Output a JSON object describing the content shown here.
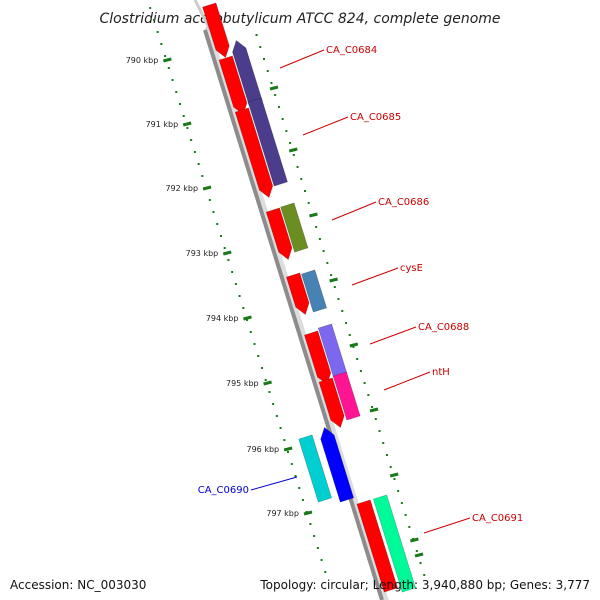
{
  "title": "Clostridium acetobutylicum ATCC 824, complete genome",
  "footer": {
    "accession": "Accession: NC_003030",
    "summary": "Topology: circular; Length: 3,940,880 bp; Genes: 3,777"
  },
  "ticks": [
    "790 kbp",
    "791 kbp",
    "792 kbp",
    "793 kbp",
    "794 kbp",
    "795 kbp",
    "796 kbp",
    "797 kbp"
  ],
  "genes": [
    {
      "label": "CA_C0684",
      "color": "#4B3C8C",
      "strand": "forward",
      "label_color": "#cc0000"
    },
    {
      "label": "CA_C0685",
      "color": "#4B3C8C",
      "strand": "forward",
      "label_color": "#cc0000"
    },
    {
      "label": "CA_C0686",
      "color": "#6B8E23",
      "strand": "forward",
      "label_color": "#cc0000"
    },
    {
      "label": "cysE",
      "color": "#4682B4",
      "strand": "forward",
      "label_color": "#cc0000"
    },
    {
      "label": "CA_C0688",
      "color": "#7B68EE",
      "strand": "forward",
      "label_color": "#cc0000"
    },
    {
      "label": "ntH",
      "color": "#FF1493",
      "strand": "forward",
      "label_color": "#cc0000"
    },
    {
      "label": "CA_C0690",
      "color": "#00CED1",
      "strand": "reverse",
      "label_color": "#0000cc"
    },
    {
      "label": "CA_C0691",
      "color": "#00FA9A",
      "strand": "forward",
      "label_color": "#cc0000"
    }
  ],
  "colors": {
    "backbone": "#8c8c8c",
    "cds": "#ff0000",
    "tick": "#1a7a1a",
    "reverse_cds": "#0000ff"
  }
}
